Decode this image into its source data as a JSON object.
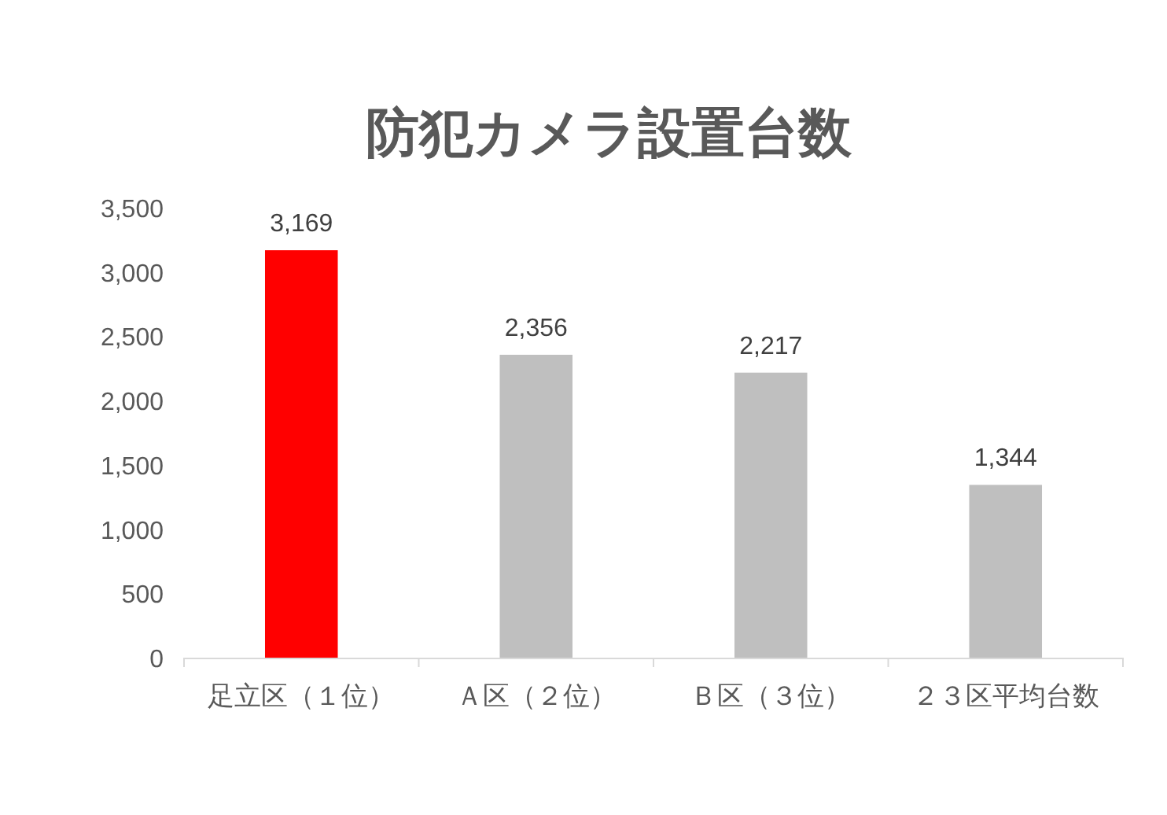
{
  "chart_data": {
    "type": "bar",
    "title": "防犯カメラ設置台数",
    "categories": [
      "足立区（１位）",
      "Ａ区（２位）",
      "Ｂ区（３位）",
      "２３区平均台数"
    ],
    "values": [
      3169,
      2356,
      2217,
      1344
    ],
    "colors": [
      "#ff0000",
      "#bfbfbf",
      "#bfbfbf",
      "#bfbfbf"
    ],
    "value_labels": [
      "3,169",
      "2,356",
      "2,217",
      "1,344"
    ],
    "ylim": [
      0,
      3500
    ],
    "yticks": [
      0,
      500,
      {
        "value": 1000,
        "label": "1,000"
      },
      {
        "value": 1500,
        "label": "1,500"
      },
      {
        "value": 2000,
        "label": "2,000"
      },
      {
        "value": 2500,
        "label": "2,500"
      },
      {
        "value": 3000,
        "label": "3,000"
      },
      {
        "value": 3500,
        "label": "3,500"
      }
    ]
  }
}
